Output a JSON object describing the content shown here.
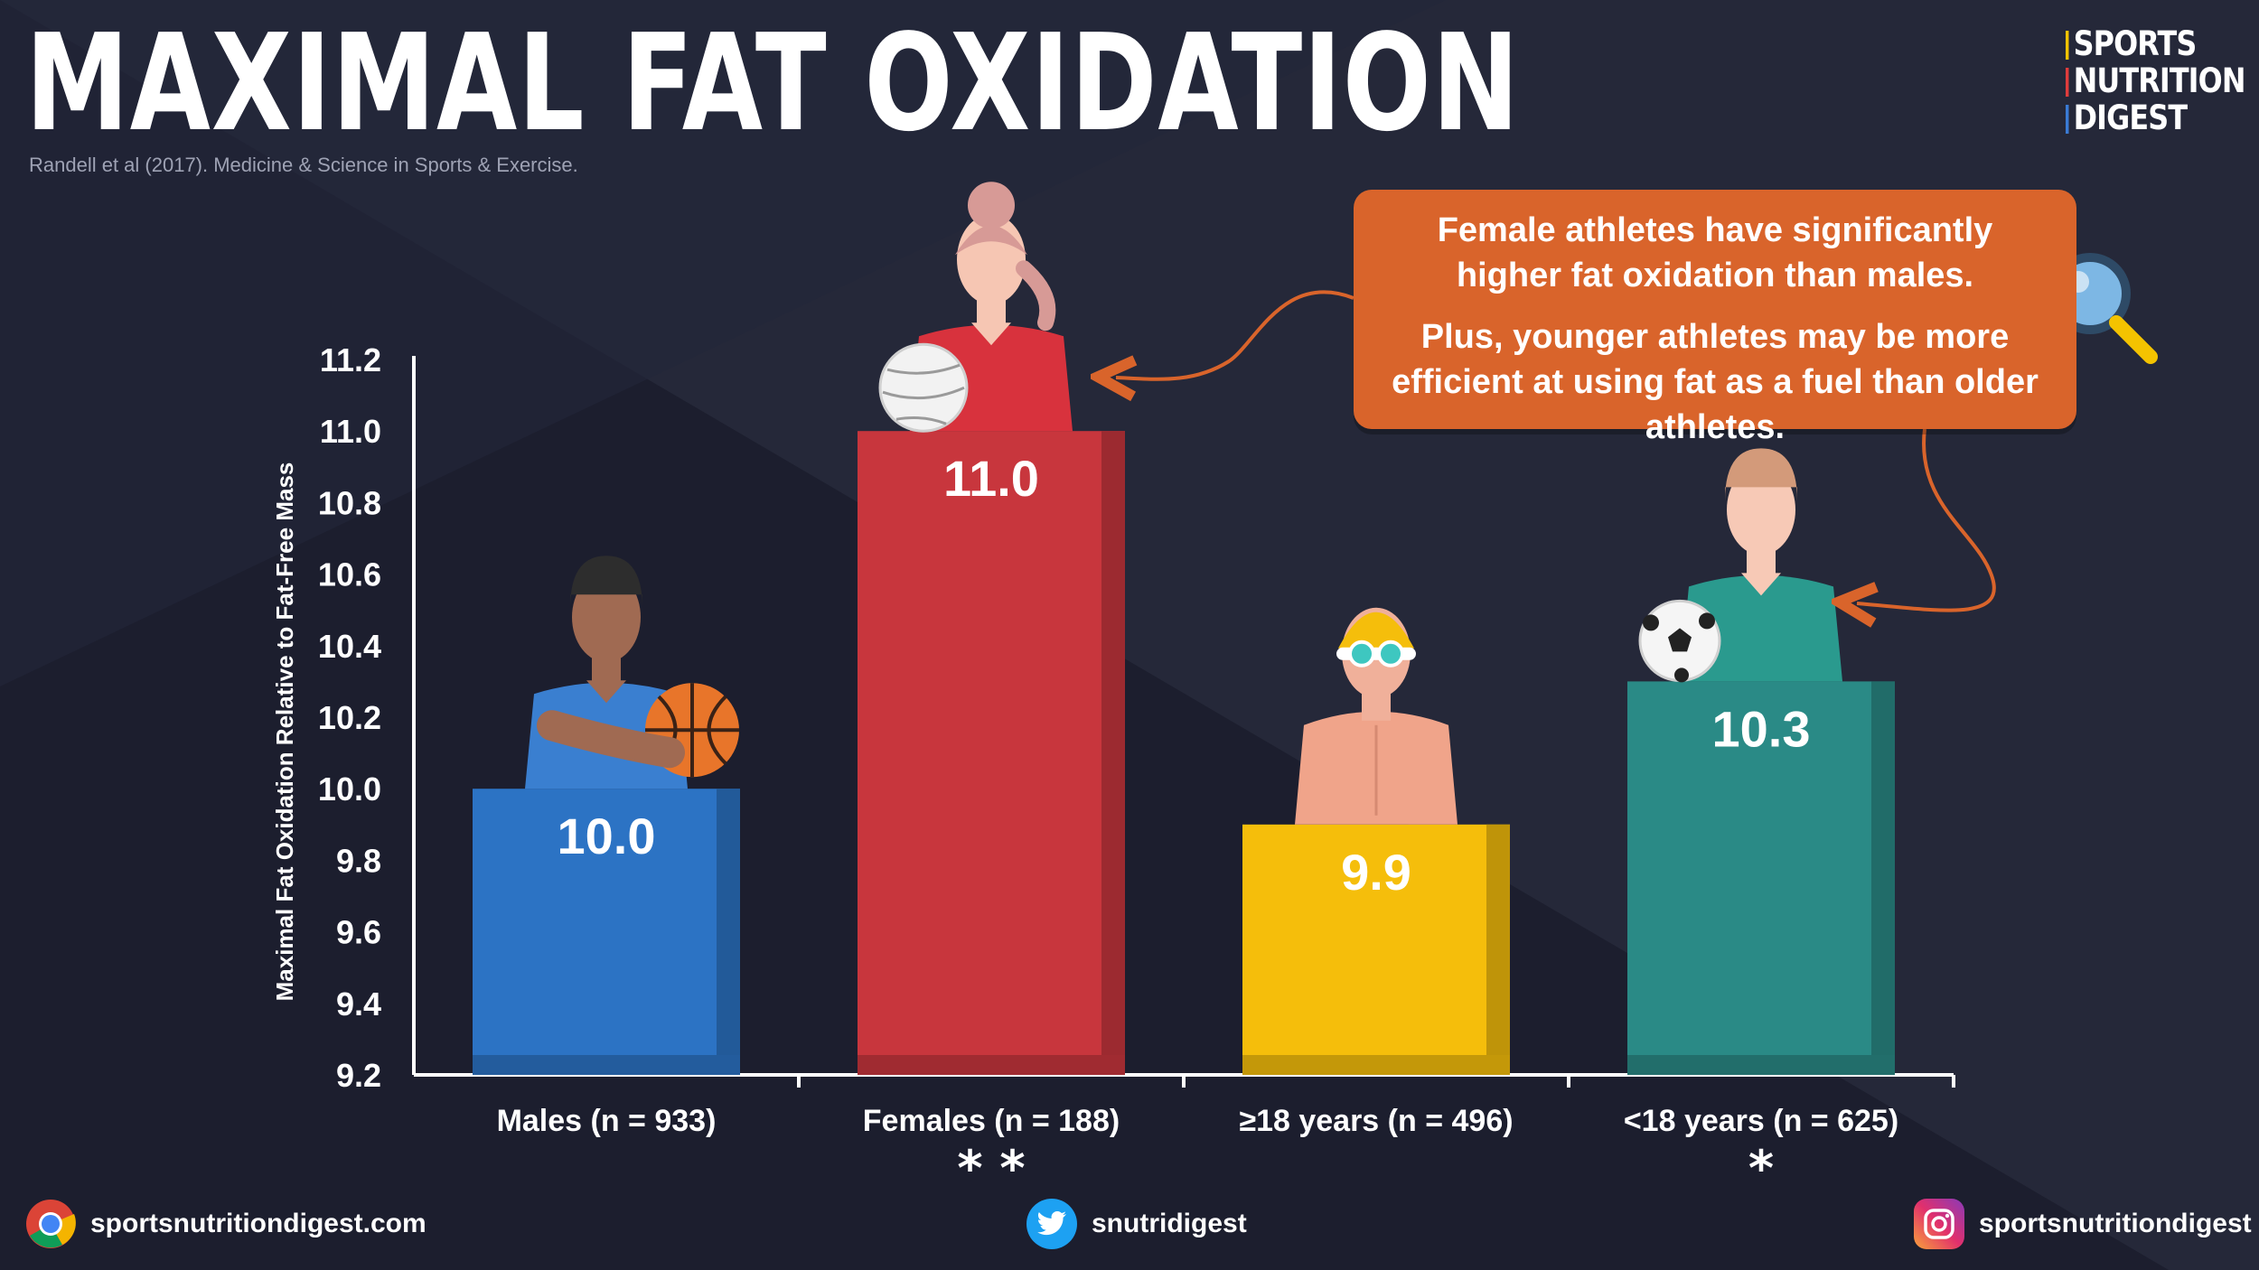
{
  "header": {
    "title": "MAXIMAL FAT OXIDATION",
    "citation": "Randell et al (2017). Medicine & Science in Sports & Exercise."
  },
  "brand": {
    "line1": "SPORTS",
    "line2": "NUTRITION",
    "line3": "DIGEST"
  },
  "callout": {
    "text1": "Female athletes have significantly higher fat oxidation than males.",
    "text2": "Plus, younger athletes may be more efficient at using fat as a fuel than older athletes."
  },
  "footer": {
    "website": "sportsnutritiondigest.com",
    "twitter": "snutridigest",
    "instagram": "sportsnutritiondigest"
  },
  "colors": {
    "background": "#1c1e2e",
    "accent": "#d9642b"
  },
  "chart_data": {
    "type": "bar",
    "title": "MAXIMAL FAT OXIDATION",
    "xlabel": "",
    "ylabel": "Maximal Fat Oxidation Relative to Fat-Free Mass",
    "ylim": [
      9.2,
      11.2
    ],
    "yticks": [
      "9.2",
      "9.4",
      "9.6",
      "9.8",
      "10.0",
      "10.2",
      "10.4",
      "10.6",
      "10.8",
      "11.0",
      "11.2"
    ],
    "grid": false,
    "categories": [
      "Males (n = 933)",
      "Females (n = 188)",
      "≥18 years (n = 496)",
      "<18 years (n = 625)"
    ],
    "values": [
      10.0,
      11.0,
      9.9,
      10.3
    ],
    "value_labels": [
      "10.0",
      "11.0",
      "9.9",
      "10.3"
    ],
    "significance": [
      "",
      "* *",
      "",
      "*"
    ],
    "colors": [
      "#2c73c4",
      "#c8363d",
      "#f5be0b",
      "#2a8a86"
    ],
    "athletes": [
      "basketball-player",
      "volleyball-player",
      "swimmer",
      "soccer-player"
    ]
  }
}
